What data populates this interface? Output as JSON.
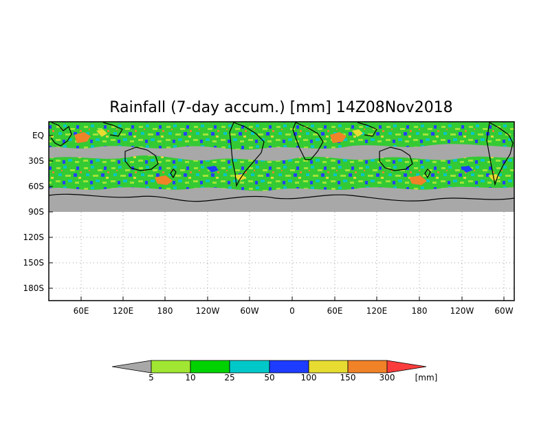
{
  "title": "Rainfall (7-day accum.) [mm] 14Z08Nov2018",
  "y_tick_labels": [
    "EQ",
    "30S",
    "60S",
    "90S",
    "120S",
    "150S",
    "180S"
  ],
  "x_tick_labels": [
    "60E",
    "120E",
    "180",
    "120W",
    "60W",
    "0",
    "60E",
    "120E",
    "180",
    "120W",
    "60W"
  ],
  "colorbar": {
    "tick_labels": [
      "5",
      "10",
      "25",
      "50",
      "100",
      "150",
      "300"
    ],
    "unit": "[mm]",
    "colors": [
      "#a8a8a8",
      "#a0e632",
      "#00d200",
      "#00c8c8",
      "#1e3cff",
      "#e6dc32",
      "#f08228",
      "#fa3c3c"
    ]
  },
  "map": {
    "no_rain_color": "#a8a8a8",
    "antarctica_color": "#a8a8a8",
    "empty_region_color": "#ffffff",
    "gridline_style": "dotted"
  }
}
